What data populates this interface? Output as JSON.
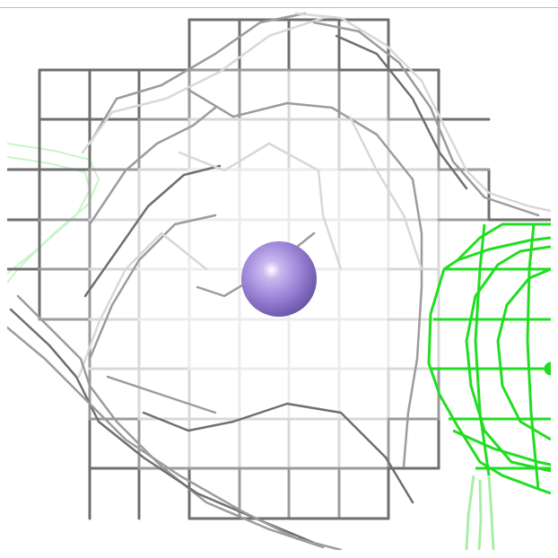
{
  "scene": {
    "background_color": "#ffffff",
    "mesh_colors": {
      "density_mesh_dark": "#6f6f6f",
      "density_mesh_mid": "#9c9c9c",
      "density_mesh_light": "#d8d8d8",
      "density_mesh_faint": "#ececec",
      "ligand_mesh": "#22dd22",
      "ligand_mesh_faint": "#c8f5c8"
    },
    "atom": {
      "color": "#9a82d6",
      "highlight": "#ffffff",
      "shadow": "#6a55a8"
    }
  }
}
